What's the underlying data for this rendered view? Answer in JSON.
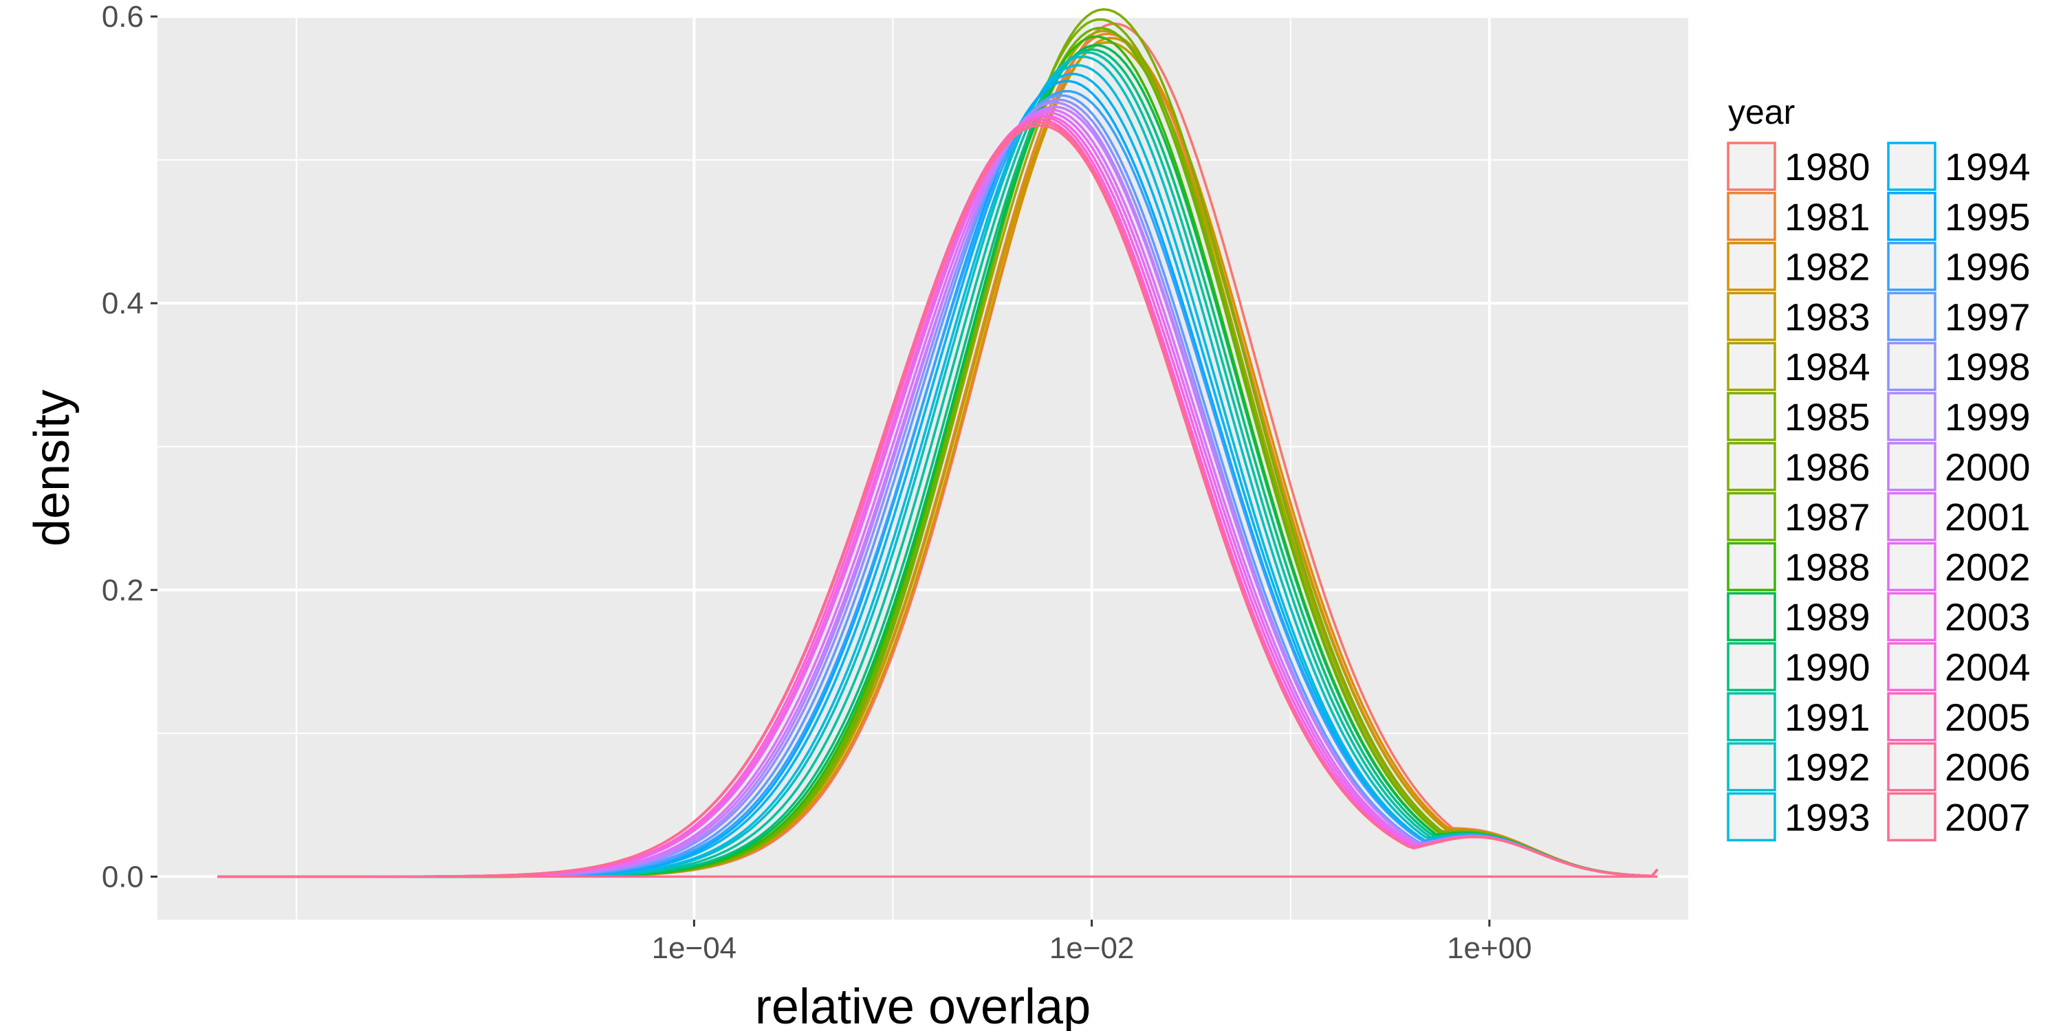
{
  "chart_data": {
    "type": "line",
    "subtype": "density",
    "xlabel": "relative overlap",
    "ylabel": "density",
    "x_scale": "log10",
    "xlim": [
      2e-07,
      10
    ],
    "ylim": [
      -0.03,
      0.6
    ],
    "x_ticks": [
      {
        "value": 0.0001,
        "label": "1e−04"
      },
      {
        "value": 0.01,
        "label": "1e−02"
      },
      {
        "value": 1,
        "label": "1e+00"
      }
    ],
    "x_minor_ticks": [
      1e-06,
      0.001,
      0.1
    ],
    "y_ticks": [
      {
        "value": 0.0,
        "label": "0.0"
      },
      {
        "value": 0.2,
        "label": "0.2"
      },
      {
        "value": 0.4,
        "label": "0.4"
      },
      {
        "value": 0.6,
        "label": "0.6"
      }
    ],
    "y_minor_ticks": [
      0.1,
      0.3,
      0.5
    ],
    "grid": true,
    "panel_background": "#ebebeb",
    "grid_color": "#ffffff",
    "legend": {
      "title": "year",
      "position": "right",
      "columns": 2
    },
    "x_range": [
      4e-07,
      7.0
    ],
    "series": [
      {
        "name": "1980",
        "color": "#F8766D",
        "peak_x": 0.013,
        "peak_y": 0.595,
        "left_sd": 0.68,
        "right_sd": 0.71
      },
      {
        "name": "1981",
        "color": "#EA8331",
        "peak_x": 0.012,
        "peak_y": 0.588,
        "left_sd": 0.68,
        "right_sd": 0.71
      },
      {
        "name": "1982",
        "color": "#D89000",
        "peak_x": 0.0125,
        "peak_y": 0.585,
        "left_sd": 0.68,
        "right_sd": 0.71
      },
      {
        "name": "1983",
        "color": "#C09B00",
        "peak_x": 0.012,
        "peak_y": 0.582,
        "left_sd": 0.68,
        "right_sd": 0.71
      },
      {
        "name": "1984",
        "color": "#A3A500",
        "peak_x": 0.0115,
        "peak_y": 0.59,
        "left_sd": 0.68,
        "right_sd": 0.7
      },
      {
        "name": "1985",
        "color": "#7CAE00",
        "peak_x": 0.0115,
        "peak_y": 0.605,
        "left_sd": 0.67,
        "right_sd": 0.7
      },
      {
        "name": "1986",
        "color": "#7CAE00",
        "peak_x": 0.011,
        "peak_y": 0.598,
        "left_sd": 0.67,
        "right_sd": 0.7
      },
      {
        "name": "1987",
        "color": "#6BB100",
        "peak_x": 0.011,
        "peak_y": 0.592,
        "left_sd": 0.67,
        "right_sd": 0.7
      },
      {
        "name": "1988",
        "color": "#39B600",
        "peak_x": 0.0105,
        "peak_y": 0.586,
        "left_sd": 0.67,
        "right_sd": 0.7
      },
      {
        "name": "1989",
        "color": "#00BB4E",
        "peak_x": 0.0105,
        "peak_y": 0.58,
        "left_sd": 0.68,
        "right_sd": 0.7
      },
      {
        "name": "1990",
        "color": "#00BF7D",
        "peak_x": 0.01,
        "peak_y": 0.577,
        "left_sd": 0.68,
        "right_sd": 0.7
      },
      {
        "name": "1991",
        "color": "#00C1A3",
        "peak_x": 0.0095,
        "peak_y": 0.575,
        "left_sd": 0.69,
        "right_sd": 0.7
      },
      {
        "name": "1992",
        "color": "#00BFC4",
        "peak_x": 0.009,
        "peak_y": 0.572,
        "left_sd": 0.7,
        "right_sd": 0.7
      },
      {
        "name": "1993",
        "color": "#00BAE0",
        "peak_x": 0.0085,
        "peak_y": 0.566,
        "left_sd": 0.7,
        "right_sd": 0.7
      },
      {
        "name": "1994",
        "color": "#00B4EF",
        "peak_x": 0.008,
        "peak_y": 0.56,
        "left_sd": 0.71,
        "right_sd": 0.71
      },
      {
        "name": "1995",
        "color": "#00A9FF",
        "peak_x": 0.0075,
        "peak_y": 0.555,
        "left_sd": 0.71,
        "right_sd": 0.72
      },
      {
        "name": "1996",
        "color": "#35A2FF",
        "peak_x": 0.0075,
        "peak_y": 0.548,
        "left_sd": 0.72,
        "right_sd": 0.72
      },
      {
        "name": "1997",
        "color": "#619CFF",
        "peak_x": 0.007,
        "peak_y": 0.545,
        "left_sd": 0.72,
        "right_sd": 0.72
      },
      {
        "name": "1998",
        "color": "#8F91FF",
        "peak_x": 0.0068,
        "peak_y": 0.542,
        "left_sd": 0.73,
        "right_sd": 0.72
      },
      {
        "name": "1999",
        "color": "#AD88FF",
        "peak_x": 0.0065,
        "peak_y": 0.54,
        "left_sd": 0.73,
        "right_sd": 0.73
      },
      {
        "name": "2000",
        "color": "#C77CFF",
        "peak_x": 0.0065,
        "peak_y": 0.537,
        "left_sd": 0.74,
        "right_sd": 0.73
      },
      {
        "name": "2001",
        "color": "#DC71FA",
        "peak_x": 0.0062,
        "peak_y": 0.535,
        "left_sd": 0.74,
        "right_sd": 0.73
      },
      {
        "name": "2002",
        "color": "#E76BF3",
        "peak_x": 0.006,
        "peak_y": 0.533,
        "left_sd": 0.75,
        "right_sd": 0.73
      },
      {
        "name": "2003",
        "color": "#F265E7",
        "peak_x": 0.0058,
        "peak_y": 0.531,
        "left_sd": 0.75,
        "right_sd": 0.73
      },
      {
        "name": "2004",
        "color": "#FA62DB",
        "peak_x": 0.0056,
        "peak_y": 0.53,
        "left_sd": 0.75,
        "right_sd": 0.73
      },
      {
        "name": "2005",
        "color": "#FF62BC",
        "peak_x": 0.0055,
        "peak_y": 0.528,
        "left_sd": 0.76,
        "right_sd": 0.73
      },
      {
        "name": "2006",
        "color": "#FF6A98",
        "peak_x": 0.0055,
        "peak_y": 0.526,
        "left_sd": 0.76,
        "right_sd": 0.73
      },
      {
        "name": "2007",
        "color": "#FF6C91",
        "peak_x": 0.0055,
        "peak_y": 0.524,
        "left_sd": 0.76,
        "right_sd": 0.73
      }
    ]
  }
}
